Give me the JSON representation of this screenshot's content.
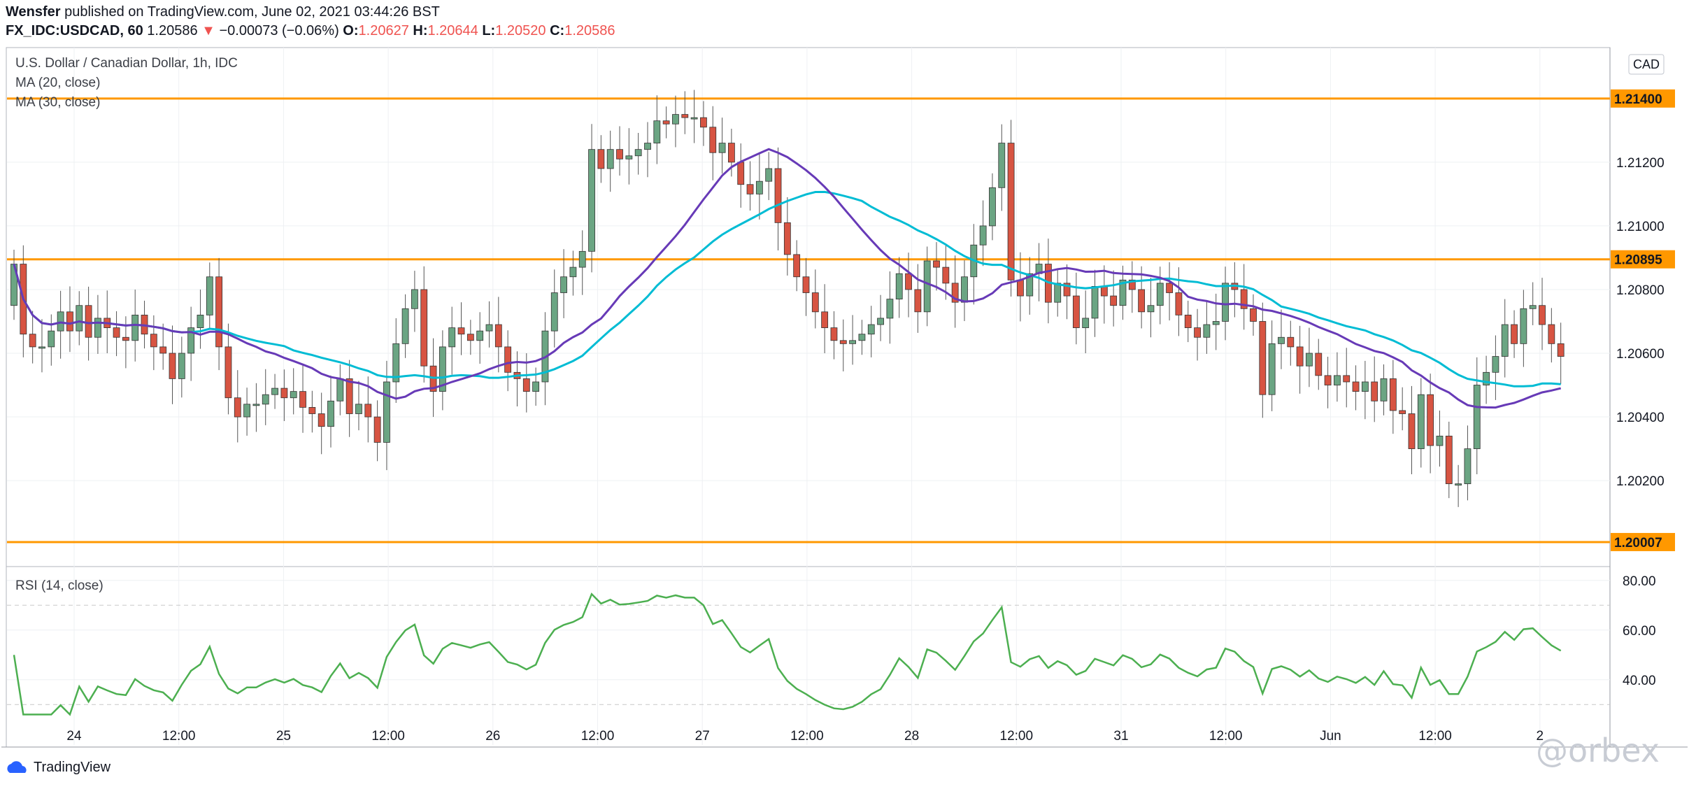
{
  "header": {
    "publisher": "Wensfer",
    "published_text": "published on TradingView.com, June 02, 2021 03:44:26 BST",
    "symbol": "FX_IDC:USDCAD, 60",
    "last": "1.20586",
    "arrow": "▼",
    "change": "−0.00073 (−0.06%)",
    "o_label": "O:",
    "o": "1.20627",
    "h_label": "H:",
    "h": "1.20644",
    "l_label": "L:",
    "l": "1.20520",
    "c_label": "C:",
    "c": "1.20586"
  },
  "legend": {
    "title": "U.S. Dollar / Canadian Dollar, 1h, IDC",
    "ma20": "MA (20, close)",
    "ma30": "MA (30, close)",
    "rsi": "RSI (14, close)"
  },
  "currency": "CAD",
  "footer": {
    "brand": "TradingView",
    "watermark": "@orbex"
  },
  "colors": {
    "up": "#6ba583",
    "down": "#d75442",
    "ma20": "#673ab7",
    "ma30": "#00bcd4",
    "level": "#ff9800",
    "rsi": "#4caf50",
    "grid": "#eef0f3"
  },
  "chart_data": {
    "type": "candlestick",
    "y_ticks": [
      "1.21200",
      "1.21000",
      "1.20800",
      "1.20600",
      "1.20400",
      "1.20200"
    ],
    "ylim": [
      1.1993,
      1.2156
    ],
    "x_ticks": [
      "24",
      "12:00",
      "25",
      "12:00",
      "26",
      "12:00",
      "27",
      "12:00",
      "28",
      "12:00",
      "31",
      "12:00",
      "Jun",
      "12:00",
      "2"
    ],
    "levels": [
      {
        "value": 1.214,
        "label": "1.21400"
      },
      {
        "value": 1.20895,
        "label": "1.20895"
      },
      {
        "value": 1.20007,
        "label": "1.20007"
      }
    ],
    "candles_close": [
      1.2088,
      1.2066,
      1.2062,
      1.2062,
      1.2067,
      1.2073,
      1.2067,
      1.2075,
      1.2065,
      1.2071,
      1.2068,
      1.2065,
      1.2064,
      1.2072,
      1.2066,
      1.2062,
      1.206,
      1.2052,
      1.206,
      1.2068,
      1.2072,
      1.2084,
      1.2062,
      1.2046,
      1.204,
      1.2044,
      1.2044,
      1.2047,
      1.2049,
      1.2046,
      1.2048,
      1.2043,
      1.2041,
      1.2037,
      1.2045,
      1.2052,
      1.2041,
      1.2044,
      1.204,
      1.2032,
      1.2051,
      1.2063,
      1.2074,
      1.208,
      1.2056,
      1.2048,
      1.2062,
      1.2068,
      1.2066,
      1.2064,
      1.2067,
      1.2069,
      1.2062,
      1.2054,
      1.2052,
      1.2048,
      1.2051,
      1.2067,
      1.2079,
      1.2084,
      1.2087,
      1.2092,
      1.2124,
      1.2118,
      1.2124,
      1.2121,
      1.2122,
      1.2124,
      1.2126,
      1.2133,
      1.2132,
      1.2135,
      1.2134,
      1.2134,
      1.2131,
      1.2123,
      1.2126,
      1.212,
      1.2113,
      1.211,
      1.2114,
      1.2118,
      1.2101,
      1.2091,
      1.2084,
      1.2079,
      1.2073,
      1.2068,
      1.2064,
      1.2063,
      1.2064,
      1.2066,
      1.2069,
      1.2071,
      1.2077,
      1.2085,
      1.208,
      1.2073,
      1.2089,
      1.2087,
      1.2082,
      1.2076,
      1.2084,
      1.2094,
      1.21,
      1.2112,
      1.2126,
      1.2083,
      1.2078,
      1.2085,
      1.2088,
      1.2076,
      1.2082,
      1.2078,
      1.2068,
      1.2071,
      1.2081,
      1.2078,
      1.2075,
      1.2083,
      1.208,
      1.2073,
      1.2075,
      1.2082,
      1.2079,
      1.2072,
      1.2068,
      1.2065,
      1.2069,
      1.207,
      1.2082,
      1.208,
      1.2074,
      1.207,
      1.2047,
      1.2063,
      1.2065,
      1.2062,
      1.2056,
      1.206,
      1.2053,
      1.205,
      1.2053,
      1.2051,
      1.2048,
      1.2051,
      1.2045,
      1.2052,
      1.2042,
      1.2041,
      1.203,
      1.2047,
      1.2031,
      1.2034,
      1.2019,
      1.2019,
      1.203,
      1.205,
      1.2054,
      1.2059,
      1.2069,
      1.2063,
      1.2074,
      1.2075,
      1.2069,
      1.2063,
      1.2059
    ],
    "candles_open": [
      1.2075,
      1.2088,
      1.2066,
      1.2062,
      1.2062,
      1.2067,
      1.2073,
      1.2067,
      1.2075,
      1.2065,
      1.2071,
      1.2068,
      1.2065,
      1.2064,
      1.2072,
      1.2066,
      1.2062,
      1.206,
      1.2052,
      1.206,
      1.2068,
      1.2072,
      1.2084,
      1.2062,
      1.2046,
      1.204,
      1.2044,
      1.2044,
      1.2047,
      1.2049,
      1.2046,
      1.2048,
      1.2043,
      1.2041,
      1.2037,
      1.2045,
      1.2052,
      1.2041,
      1.2044,
      1.204,
      1.2032,
      1.2051,
      1.2063,
      1.2074,
      1.208,
      1.2056,
      1.2048,
      1.2062,
      1.2068,
      1.2066,
      1.2064,
      1.2067,
      1.2069,
      1.2062,
      1.2054,
      1.2052,
      1.2048,
      1.2051,
      1.2067,
      1.2079,
      1.2084,
      1.2087,
      1.2092,
      1.2124,
      1.2118,
      1.2124,
      1.2121,
      1.2122,
      1.2124,
      1.2126,
      1.2133,
      1.2132,
      1.2135,
      1.2134,
      1.2134,
      1.2131,
      1.2123,
      1.2126,
      1.212,
      1.2113,
      1.211,
      1.2114,
      1.2118,
      1.2101,
      1.2091,
      1.2084,
      1.2079,
      1.2073,
      1.2068,
      1.2064,
      1.2063,
      1.2064,
      1.2066,
      1.2069,
      1.2071,
      1.2077,
      1.2085,
      1.208,
      1.2073,
      1.2089,
      1.2087,
      1.2082,
      1.2076,
      1.2084,
      1.2094,
      1.21,
      1.2112,
      1.2126,
      1.2083,
      1.2078,
      1.2085,
      1.2088,
      1.2076,
      1.2082,
      1.2078,
      1.2068,
      1.2071,
      1.2081,
      1.2078,
      1.2075,
      1.2083,
      1.208,
      1.2073,
      1.2075,
      1.2082,
      1.2079,
      1.2072,
      1.2068,
      1.2065,
      1.2069,
      1.207,
      1.2082,
      1.208,
      1.2074,
      1.207,
      1.2047,
      1.2063,
      1.2065,
      1.2062,
      1.2056,
      1.206,
      1.2053,
      1.205,
      1.2053,
      1.2051,
      1.2048,
      1.2051,
      1.2045,
      1.2052,
      1.2042,
      1.2041,
      1.203,
      1.2047,
      1.2031,
      1.2034,
      1.2019,
      1.2019,
      1.203,
      1.205,
      1.2054,
      1.2059,
      1.2069,
      1.2063,
      1.2074,
      1.2075,
      1.2069,
      1.2063
    ],
    "rsi_ticks": [
      "80.00",
      "60.00",
      "40.00"
    ],
    "rsi_bands": [
      70,
      30
    ],
    "rsi_ylim": [
      25,
      85
    ]
  }
}
